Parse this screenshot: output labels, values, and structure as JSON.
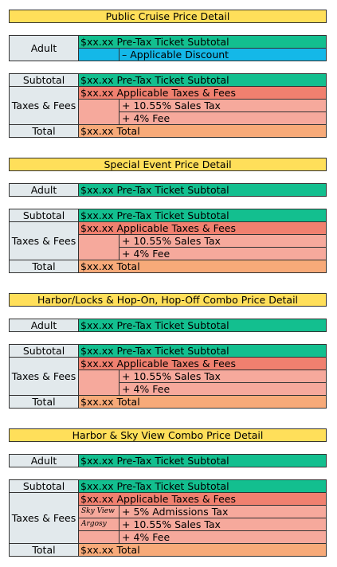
{
  "colors": {
    "title": "#ffdf5a",
    "label": "#e2e9ec",
    "subtotal_teal": "#13bf8f",
    "discount_blue": "#14b8e8",
    "taxes_red": "#f0806f",
    "tax_line_pink": "#f6a99c",
    "total_orange": "#f7aa79"
  },
  "public": {
    "title": "Public Cruise Price Detail",
    "adult": "Adult",
    "adult_value": "$xx.xx Pre-Tax Ticket Subtotal",
    "discount": "– Applicable Discount",
    "subtotal": "Subtotal",
    "subtotal_value": "$xx.xx Pre-Tax Ticket Subtotal",
    "taxes": "Taxes & Fees",
    "taxes_value": "$xx.xx Applicable Taxes & Fees",
    "sales_tax": "+ 10.55% Sales Tax",
    "fee": "+ 4% Fee",
    "total": "Total",
    "total_value": "$xx.xx Total"
  },
  "special": {
    "title": "Special Event Price Detail",
    "adult": "Adult",
    "adult_value": "$xx.xx Pre-Tax Ticket Subtotal",
    "subtotal": "Subtotal",
    "subtotal_value": "$xx.xx Pre-Tax Ticket Subtotal",
    "taxes": "Taxes & Fees",
    "taxes_value": "$xx.xx Applicable Taxes & Fees",
    "sales_tax": "+ 10.55% Sales Tax",
    "fee": "+ 4% Fee",
    "total": "Total",
    "total_value": "$xx.xx Total"
  },
  "harbor": {
    "title": "Harbor/Locks & Hop-On, Hop-Off Combo Price Detail",
    "adult": "Adult",
    "adult_value": "$xx.xx Pre-Tax Ticket Subtotal",
    "subtotal": "Subtotal",
    "subtotal_value": "$xx.xx Pre-Tax Ticket Subtotal",
    "taxes": "Taxes & Fees",
    "taxes_value": "$xx.xx Applicable Taxes & Fees",
    "sales_tax": "+ 10.55% Sales Tax",
    "fee": "+ 4% Fee",
    "total": "Total",
    "total_value": "$xx.xx Total"
  },
  "sky": {
    "title": "Harbor & Sky View Combo Price Detail",
    "adult": "Adult",
    "adult_value": "$xx.xx Pre-Tax Ticket Subtotal",
    "subtotal": "Subtotal",
    "subtotal_value": "$xx.xx Pre-Tax Ticket Subtotal",
    "taxes": "Taxes & Fees",
    "taxes_value": "$xx.xx Applicable Taxes & Fees",
    "logo_skyview": "Sky View",
    "admissions_tax": "+ 5% Admissions Tax",
    "logo_argosy": "Argosy",
    "sales_tax": "+ 10.55% Sales Tax",
    "fee": "+ 4% Fee",
    "total": "Total",
    "total_value": "$xx.xx Total"
  }
}
